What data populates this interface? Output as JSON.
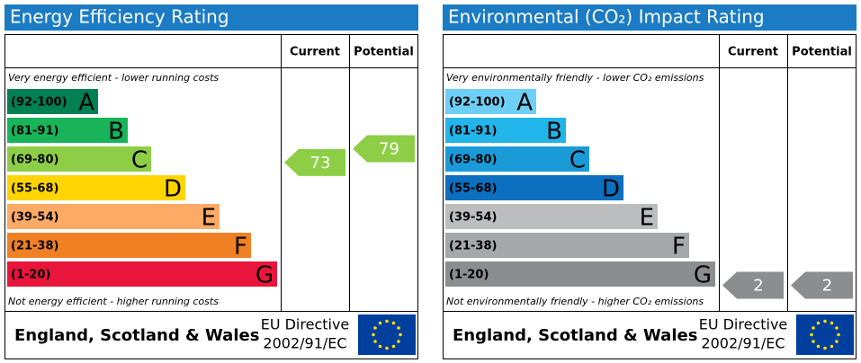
{
  "panels": [
    {
      "title": "Energy Efficiency Rating",
      "headers": [
        "Current",
        "Potential"
      ],
      "top_note": "Very energy efficient - lower running costs",
      "bottom_note": "Not energy efficient - higher running costs",
      "bands": [
        {
          "range": "(92-100)",
          "letter": "A",
          "color": "#008054"
        },
        {
          "range": "(81-91)",
          "letter": "B",
          "color": "#19b459"
        },
        {
          "range": "(69-80)",
          "letter": "C",
          "color": "#8dce46"
        },
        {
          "range": "(55-68)",
          "letter": "D",
          "color": "#ffd500"
        },
        {
          "range": "(39-54)",
          "letter": "E",
          "color": "#fcaa65"
        },
        {
          "range": "(21-38)",
          "letter": "F",
          "color": "#ef8023"
        },
        {
          "range": "(1-20)",
          "letter": "G",
          "color": "#e9153b"
        }
      ],
      "current": 73,
      "potential": 79,
      "footer": {
        "region": "England, Scotland & Wales",
        "directive": "EU Directive",
        "code": "2002/91/EC"
      }
    },
    {
      "title": "Environmental (CO₂) Impact Rating",
      "headers": [
        "Current",
        "Potential"
      ],
      "top_note": "Very environmentally friendly - lower CO₂ emissions",
      "bottom_note": "Not environmentally friendly - higher CO₂ emissions",
      "bands": [
        {
          "range": "(92-100)",
          "letter": "A",
          "color": "#6ecff6"
        },
        {
          "range": "(81-91)",
          "letter": "B",
          "color": "#22b5ea"
        },
        {
          "range": "(69-80)",
          "letter": "C",
          "color": "#1a9bd8"
        },
        {
          "range": "(55-68)",
          "letter": "D",
          "color": "#0c6fbf"
        },
        {
          "range": "(39-54)",
          "letter": "E",
          "color": "#bbbdbf"
        },
        {
          "range": "(21-38)",
          "letter": "F",
          "color": "#a5a7a9"
        },
        {
          "range": "(1-20)",
          "letter": "G",
          "color": "#8b8d8f"
        }
      ],
      "current": 2,
      "potential": 2,
      "footer": {
        "region": "England, Scotland & Wales",
        "directive": "EU Directive",
        "code": "2002/91/EC"
      }
    }
  ]
}
